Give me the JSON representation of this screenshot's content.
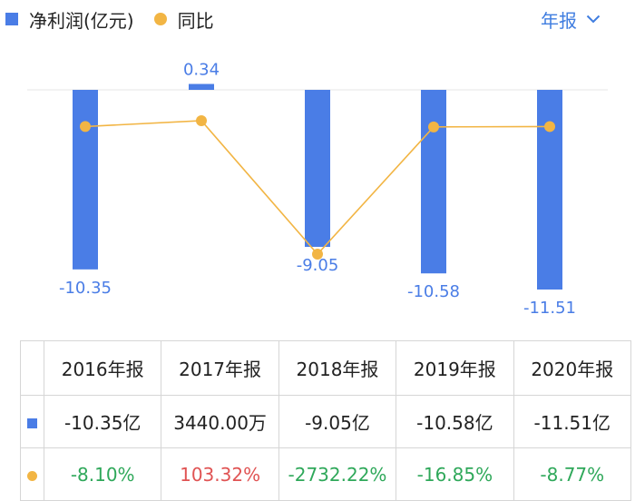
{
  "legend": {
    "bar_label": "净利润(亿元)",
    "line_label": "同比"
  },
  "period_selector": {
    "label": "年报"
  },
  "colors": {
    "bar": "#4a7de6",
    "line": "#f2b544",
    "positive": "#e05353",
    "negative": "#2fa85a",
    "selector": "#3f7de0"
  },
  "chart_data": {
    "type": "bar",
    "categories": [
      "2016年报",
      "2017年报",
      "2018年报",
      "2019年报",
      "2020年报"
    ],
    "series": [
      {
        "name": "净利润(亿元)",
        "type": "bar",
        "values": [
          -10.35,
          0.34,
          -9.05,
          -10.58,
          -11.51
        ],
        "labels": [
          "-10.35",
          "0.34",
          "-9.05",
          "-10.58",
          "-11.51"
        ]
      },
      {
        "name": "同比",
        "type": "line",
        "values": [
          -8.1,
          103.32,
          -2732.22,
          -16.85,
          -8.77
        ]
      }
    ]
  },
  "table": {
    "headers": [
      "2016年报",
      "2017年报",
      "2018年报",
      "2019年报",
      "2020年报"
    ],
    "profit_row": [
      "-10.35亿",
      "3440.00万",
      "-9.05亿",
      "-10.58亿",
      "-11.51亿"
    ],
    "yoy_row": [
      "-8.10%",
      "103.32%",
      "-2732.22%",
      "-16.85%",
      "-8.77%"
    ]
  }
}
